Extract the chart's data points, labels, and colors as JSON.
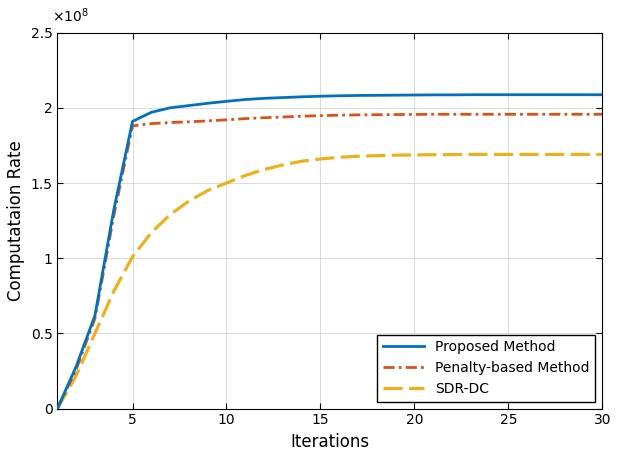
{
  "title": "",
  "xlabel": "Iterations",
  "ylabel": "Computataion Rate",
  "xlim": [
    1,
    30
  ],
  "ylim": [
    0,
    250000000.0
  ],
  "yticks": [
    0,
    50000000.0,
    100000000.0,
    150000000.0,
    200000000.0,
    250000000.0
  ],
  "ytick_labels": [
    "0",
    "0.5",
    "1",
    "1.5",
    "2",
    "2.5"
  ],
  "xticks": [
    5,
    10,
    15,
    20,
    25,
    30
  ],
  "proposed_x": [
    1,
    2,
    3,
    4,
    5,
    6,
    7,
    8,
    9,
    10,
    11,
    12,
    13,
    14,
    15,
    16,
    17,
    18,
    19,
    20,
    21,
    22,
    23,
    24,
    25,
    26,
    27,
    28,
    29,
    30
  ],
  "proposed_y": [
    0.0,
    28000000.0,
    62000000.0,
    132000000.0,
    191000000.0,
    197000000.0,
    200000000.0,
    201500000.0,
    203000000.0,
    204300000.0,
    205500000.0,
    206300000.0,
    206800000.0,
    207300000.0,
    207700000.0,
    208000000.0,
    208200000.0,
    208300000.0,
    208400000.0,
    208500000.0,
    208600000.0,
    208600000.0,
    208700000.0,
    208700000.0,
    208700000.0,
    208700000.0,
    208700000.0,
    208700000.0,
    208700000.0,
    208700000.0
  ],
  "penalty_x": [
    1,
    2,
    3,
    4,
    5,
    6,
    7,
    8,
    9,
    10,
    11,
    12,
    13,
    14,
    15,
    16,
    17,
    18,
    19,
    20,
    21,
    22,
    23,
    24,
    25,
    26,
    27,
    28,
    29,
    30
  ],
  "penalty_y": [
    0.0,
    26000000.0,
    60000000.0,
    128000000.0,
    188000000.0,
    189500000.0,
    190200000.0,
    190700000.0,
    191300000.0,
    192000000.0,
    192800000.0,
    193400000.0,
    193900000.0,
    194400000.0,
    194800000.0,
    195100000.0,
    195300000.0,
    195400000.0,
    195500000.0,
    195600000.0,
    195700000.0,
    195700000.0,
    195700000.0,
    195700000.0,
    195700000.0,
    195700000.0,
    195700000.0,
    195700000.0,
    195700000.0,
    195700000.0
  ],
  "sdr_x": [
    1,
    2,
    3,
    4,
    5,
    6,
    7,
    8,
    9,
    10,
    11,
    12,
    13,
    14,
    15,
    16,
    17,
    18,
    19,
    20,
    21,
    22,
    23,
    24,
    25,
    26,
    27,
    28,
    29,
    30
  ],
  "sdr_y": [
    0.0,
    22000000.0,
    50000000.0,
    78000000.0,
    101000000.0,
    117000000.0,
    129000000.0,
    138000000.0,
    145000000.0,
    150000000.0,
    155000000.0,
    159000000.0,
    162000000.0,
    164500000.0,
    166000000.0,
    167100000.0,
    167800000.0,
    168200000.0,
    168500000.0,
    168700000.0,
    168800000.0,
    168900000.0,
    169000000.0,
    169000000.0,
    169000000.0,
    169000000.0,
    169000000.0,
    169000000.0,
    169000000.0,
    169000000.0
  ],
  "proposed_color": "#0072BD",
  "penalty_color": "#D95319",
  "sdr_color": "#EDB120",
  "linewidth": 2.0,
  "legend_loc": "lower right",
  "legend_labels": [
    "Proposed Method",
    "Penalty-based Method",
    "SDR-DC"
  ],
  "grid": true
}
